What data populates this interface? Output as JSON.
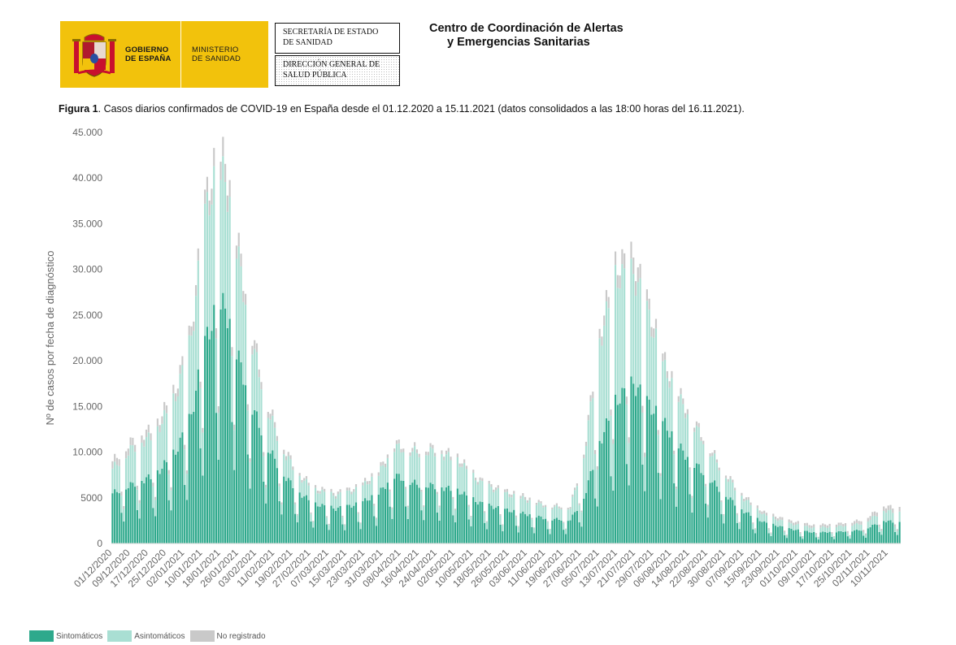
{
  "header": {
    "gov_line1": "GOBIERNO",
    "gov_line2": "DE ESPAÑA",
    "min_line1": "MINISTERIO",
    "min_line2": "DE SANIDAD",
    "secretaria_line1": "SECRETARÍA DE ESTADO",
    "secretaria_line2": "DE SANIDAD",
    "direccion_line1": "DIRECCIÓN GENERAL DE",
    "direccion_line2": "SALUD PÚBLICA",
    "centre_line1": "Centro de Coordinación de Alertas",
    "centre_line2": "y Emergencias Sanitarias"
  },
  "caption": {
    "label": "Figura 1",
    "text": ". Casos diarios confirmados de COVID-19 en España desde el 01.12.2020 a 15.11.2021 (datos consolidados a las 18:00 horas del 16.11.2021)."
  },
  "colors": {
    "sintomaticos": "#2ea98c",
    "asintomaticos": "#a9dfd3",
    "no_registrado": "#c9c9c9",
    "axis_text": "#666666"
  },
  "chart_data": {
    "type": "bar",
    "stacked": true,
    "title": "Casos diarios confirmados de COVID-19 en España desde el 01.12.2020 a 15.11.2021",
    "xlabel": "",
    "ylabel": "Nº de casos por fecha de diagnóstico",
    "ylim": [
      0,
      45000
    ],
    "yticks": [
      0,
      5000,
      10000,
      15000,
      20000,
      25000,
      30000,
      35000,
      40000,
      45000
    ],
    "ytick_labels": [
      "0",
      "5000",
      "10.000",
      "15.000",
      "20.000",
      "25.000",
      "30.000",
      "35.000",
      "40.000",
      "45.000"
    ],
    "x_tick_labels": [
      "01/12/2020",
      "09/12/2020",
      "17/12/2020",
      "25/12/2020",
      "02/01/2021",
      "10/01/2021",
      "18/01/2021",
      "26/01/2021",
      "03/02/2021",
      "11/02/2021",
      "19/02/2021",
      "27/02/2021",
      "07/03/2021",
      "15/03/2021",
      "23/03/2021",
      "31/03/2021",
      "08/04/2021",
      "16/04/2021",
      "24/04/2021",
      "02/05/2021",
      "10/05/2021",
      "18/05/2021",
      "26/05/2021",
      "03/06/2021",
      "11/06/2021",
      "19/06/2021",
      "27/06/2021",
      "05/07/2021",
      "13/07/2021",
      "21/07/2021",
      "29/07/2021",
      "06/08/2021",
      "14/08/2021",
      "22/08/2021",
      "30/08/2021",
      "07/09/2021",
      "15/09/2021",
      "23/09/2021",
      "01/10/2021",
      "09/10/2021",
      "17/10/2021",
      "25/10/2021",
      "02/11/2021",
      "10/11/2021"
    ],
    "days": 350,
    "weekly_pattern": "Weekday totals near the trend value; Saturdays about 55% and Sundays about 38% of it.",
    "series": [
      {
        "name": "Sintomáticos",
        "weekday_peak_anchors": [
          {
            "date": "01/12/2020",
            "value": 5500
          },
          {
            "date": "10/12/2020",
            "value": 6500
          },
          {
            "date": "20/12/2020",
            "value": 7500
          },
          {
            "date": "29/12/2020",
            "value": 10000
          },
          {
            "date": "05/01/2021",
            "value": 14000
          },
          {
            "date": "11/01/2021",
            "value": 22000
          },
          {
            "date": "16/01/2021",
            "value": 25500
          },
          {
            "date": "20/01/2021",
            "value": 26000
          },
          {
            "date": "25/01/2021",
            "value": 21000
          },
          {
            "date": "01/02/2021",
            "value": 15000
          },
          {
            "date": "08/02/2021",
            "value": 10500
          },
          {
            "date": "15/02/2021",
            "value": 7500
          },
          {
            "date": "22/02/2021",
            "value": 5500
          },
          {
            "date": "01/03/2021",
            "value": 4300
          },
          {
            "date": "10/03/2021",
            "value": 3800
          },
          {
            "date": "20/03/2021",
            "value": 4300
          },
          {
            "date": "29/03/2021",
            "value": 5500
          },
          {
            "date": "05/04/2021",
            "value": 7500
          },
          {
            "date": "15/04/2021",
            "value": 6500
          },
          {
            "date": "23/04/2021",
            "value": 6300
          },
          {
            "date": "03/05/2021",
            "value": 5800
          },
          {
            "date": "12/05/2021",
            "value": 4500
          },
          {
            "date": "22/05/2021",
            "value": 3800
          },
          {
            "date": "01/06/2021",
            "value": 3300
          },
          {
            "date": "12/06/2021",
            "value": 2700
          },
          {
            "date": "22/06/2021",
            "value": 2600
          },
          {
            "date": "28/06/2021",
            "value": 5000
          },
          {
            "date": "05/07/2021",
            "value": 11000
          },
          {
            "date": "12/07/2021",
            "value": 15500
          },
          {
            "date": "20/07/2021",
            "value": 17500
          },
          {
            "date": "26/07/2021",
            "value": 15500
          },
          {
            "date": "03/08/2021",
            "value": 13000
          },
          {
            "date": "11/08/2021",
            "value": 10000
          },
          {
            "date": "20/08/2021",
            "value": 7800
          },
          {
            "date": "29/08/2021",
            "value": 5500
          },
          {
            "date": "07/09/2021",
            "value": 3500
          },
          {
            "date": "16/09/2021",
            "value": 2300
          },
          {
            "date": "27/09/2021",
            "value": 1600
          },
          {
            "date": "08/10/2021",
            "value": 1200
          },
          {
            "date": "20/10/2021",
            "value": 1300
          },
          {
            "date": "30/10/2021",
            "value": 1500
          },
          {
            "date": "08/11/2021",
            "value": 2500
          },
          {
            "date": "15/11/2021",
            "value": 2300
          }
        ]
      },
      {
        "name": "Asintomáticos",
        "weekday_peak_anchors": [
          {
            "date": "01/12/2020",
            "value": 2700
          },
          {
            "date": "10/12/2020",
            "value": 4000
          },
          {
            "date": "20/12/2020",
            "value": 4500
          },
          {
            "date": "29/12/2020",
            "value": 6000
          },
          {
            "date": "05/01/2021",
            "value": 8500
          },
          {
            "date": "11/01/2021",
            "value": 14000
          },
          {
            "date": "16/01/2021",
            "value": 14500
          },
          {
            "date": "20/01/2021",
            "value": 14000
          },
          {
            "date": "25/01/2021",
            "value": 11500
          },
          {
            "date": "01/02/2021",
            "value": 7000
          },
          {
            "date": "08/02/2021",
            "value": 4000
          },
          {
            "date": "15/02/2021",
            "value": 2500
          },
          {
            "date": "22/02/2021",
            "value": 1800
          },
          {
            "date": "01/03/2021",
            "value": 1500
          },
          {
            "date": "10/03/2021",
            "value": 1400
          },
          {
            "date": "20/03/2021",
            "value": 1600
          },
          {
            "date": "29/03/2021",
            "value": 2100
          },
          {
            "date": "05/04/2021",
            "value": 3100
          },
          {
            "date": "15/04/2021",
            "value": 3500
          },
          {
            "date": "23/04/2021",
            "value": 3800
          },
          {
            "date": "03/05/2021",
            "value": 3300
          },
          {
            "date": "12/05/2021",
            "value": 2300
          },
          {
            "date": "22/05/2021",
            "value": 1800
          },
          {
            "date": "01/06/2021",
            "value": 1600
          },
          {
            "date": "12/06/2021",
            "value": 1300
          },
          {
            "date": "22/06/2021",
            "value": 1300
          },
          {
            "date": "28/06/2021",
            "value": 4500
          },
          {
            "date": "05/07/2021",
            "value": 11000
          },
          {
            "date": "12/07/2021",
            "value": 13500
          },
          {
            "date": "20/07/2021",
            "value": 12000
          },
          {
            "date": "26/07/2021",
            "value": 10000
          },
          {
            "date": "03/08/2021",
            "value": 6000
          },
          {
            "date": "11/08/2021",
            "value": 5000
          },
          {
            "date": "20/08/2021",
            "value": 3500
          },
          {
            "date": "29/08/2021",
            "value": 2200
          },
          {
            "date": "07/09/2021",
            "value": 1400
          },
          {
            "date": "16/09/2021",
            "value": 800
          },
          {
            "date": "27/09/2021",
            "value": 600
          },
          {
            "date": "08/10/2021",
            "value": 500
          },
          {
            "date": "20/10/2021",
            "value": 600
          },
          {
            "date": "30/10/2021",
            "value": 700
          },
          {
            "date": "08/11/2021",
            "value": 1100
          },
          {
            "date": "15/11/2021",
            "value": 1100
          }
        ]
      },
      {
        "name": "No registrado",
        "weekday_peak_anchors": [
          {
            "date": "01/12/2020",
            "value": 800
          },
          {
            "date": "10/12/2020",
            "value": 800
          },
          {
            "date": "20/12/2020",
            "value": 800
          },
          {
            "date": "29/12/2020",
            "value": 900
          },
          {
            "date": "05/01/2021",
            "value": 1000
          },
          {
            "date": "11/01/2021",
            "value": 1500
          },
          {
            "date": "16/01/2021",
            "value": 2000
          },
          {
            "date": "20/01/2021",
            "value": 2000
          },
          {
            "date": "25/01/2021",
            "value": 1500
          },
          {
            "date": "01/02/2021",
            "value": 1000
          },
          {
            "date": "08/02/2021",
            "value": 700
          },
          {
            "date": "15/02/2021",
            "value": 500
          },
          {
            "date": "22/02/2021",
            "value": 300
          },
          {
            "date": "01/03/2021",
            "value": 300
          },
          {
            "date": "10/03/2021",
            "value": 300
          },
          {
            "date": "20/03/2021",
            "value": 300
          },
          {
            "date": "29/03/2021",
            "value": 400
          },
          {
            "date": "05/04/2021",
            "value": 400
          },
          {
            "date": "15/04/2021",
            "value": 400
          },
          {
            "date": "23/04/2021",
            "value": 400
          },
          {
            "date": "03/05/2021",
            "value": 400
          },
          {
            "date": "12/05/2021",
            "value": 300
          },
          {
            "date": "22/05/2021",
            "value": 300
          },
          {
            "date": "01/06/2021",
            "value": 300
          },
          {
            "date": "12/06/2021",
            "value": 200
          },
          {
            "date": "22/06/2021",
            "value": 200
          },
          {
            "date": "28/06/2021",
            "value": 400
          },
          {
            "date": "05/07/2021",
            "value": 1000
          },
          {
            "date": "12/07/2021",
            "value": 1400
          },
          {
            "date": "20/07/2021",
            "value": 1800
          },
          {
            "date": "26/07/2021",
            "value": 1200
          },
          {
            "date": "03/08/2021",
            "value": 800
          },
          {
            "date": "11/08/2021",
            "value": 600
          },
          {
            "date": "20/08/2021",
            "value": 400
          },
          {
            "date": "29/08/2021",
            "value": 300
          },
          {
            "date": "07/09/2021",
            "value": 300
          },
          {
            "date": "16/09/2021",
            "value": 300
          },
          {
            "date": "27/09/2021",
            "value": 300
          },
          {
            "date": "08/10/2021",
            "value": 300
          },
          {
            "date": "20/10/2021",
            "value": 300
          },
          {
            "date": "30/10/2021",
            "value": 400
          },
          {
            "date": "08/11/2021",
            "value": 500
          },
          {
            "date": "15/11/2021",
            "value": 500
          }
        ]
      }
    ],
    "legend": [
      "Sintomáticos",
      "Asintomáticos",
      "No registrado"
    ],
    "legend_position": "bottom-left",
    "grid": false
  }
}
